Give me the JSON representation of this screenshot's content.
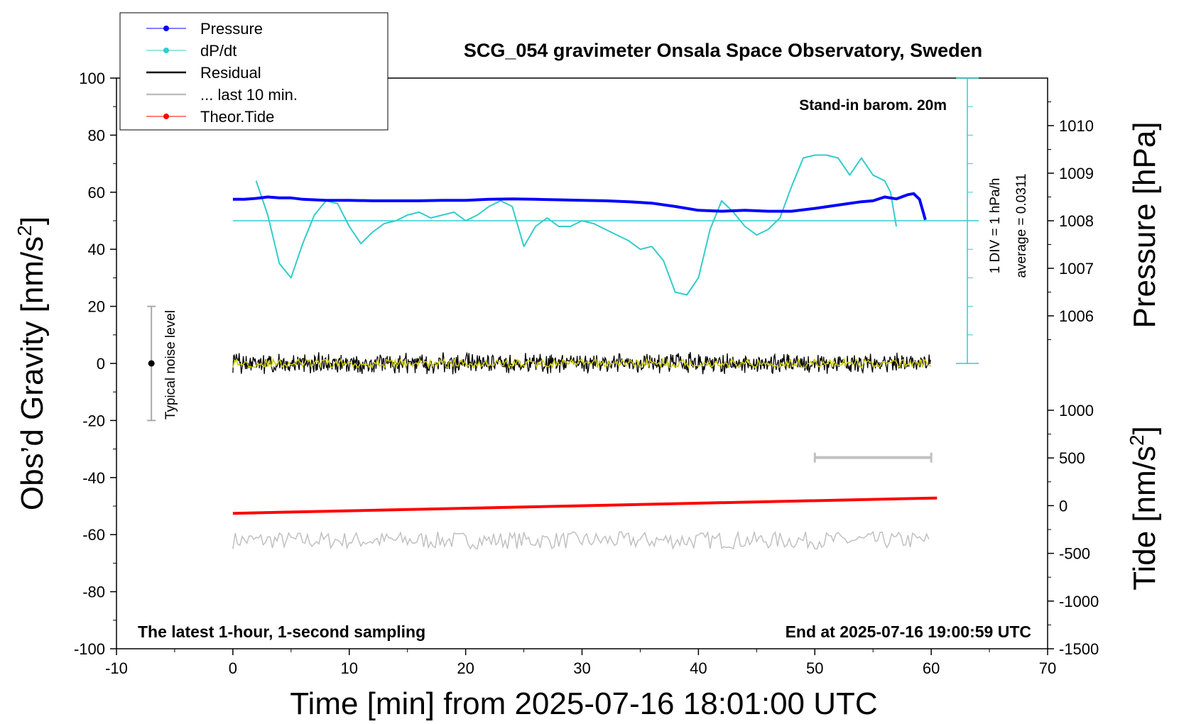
{
  "chart_data": {
    "type": "line",
    "title": "SCG_054 gravimeter Onsala Space Observatory, Sweden",
    "xlabel": "Time [min] from 2025-07-16 18:01:00 UTC",
    "ylabel_left": "Obs’d Gravity [nm/s",
    "ylabel_left_sup": "2",
    "ylabel_left_close": "]",
    "ylabel_right_pressure": "Pressure [hPa]",
    "ylabel_right_tide": "Tide [nm/s",
    "ylabel_right_tide_sup": "2",
    "ylabel_right_tide_close": "]",
    "xlim": [
      -10,
      70
    ],
    "ylim_left": [
      -100,
      100
    ],
    "pressure_ylim": [
      1005,
      1011
    ],
    "tide_ylim": [
      -1500,
      1000
    ],
    "x_ticks": [
      "-10",
      "0",
      "10",
      "20",
      "30",
      "40",
      "50",
      "60",
      "70"
    ],
    "y_ticks_left": [
      "100",
      "80",
      "60",
      "40",
      "20",
      "0",
      "-20",
      "-40",
      "-60",
      "-80",
      "-100"
    ],
    "pressure_ticks": [
      "1010",
      "1009",
      "1008",
      "1007",
      "1006"
    ],
    "tide_ticks": [
      "1000",
      "500",
      "0",
      "-500",
      "-1000",
      "-1500"
    ],
    "legend": {
      "position": "top-left",
      "entries": [
        {
          "label": "Pressure",
          "color": "#0000ff",
          "marker": true
        },
        {
          "label": "dP/dt",
          "color": "#33cccc",
          "marker": true
        },
        {
          "label": "Residual",
          "color": "#000000",
          "marker": false
        },
        {
          "label": "... last 10 min.",
          "color": "#c0c0c0",
          "marker": false
        },
        {
          "label": "Theor.Tide",
          "color": "#ff0000",
          "marker": true
        }
      ]
    },
    "annotations": {
      "barometer": "Stand-in barom. 20m",
      "dpdt_scale": "1 DIV = 1 hPa/h",
      "dpdt_average": "average = 0.0311",
      "bottom_left": "The latest 1-hour, 1-second sampling",
      "bottom_right": "End at 2025-07-16 19:00:59 UTC",
      "noise_label": "Typical noise level"
    },
    "noise_level": {
      "x": -7,
      "center": 0,
      "range": [
        -20,
        20
      ]
    },
    "last10_bar": {
      "x": [
        50,
        60
      ],
      "value": -33
    },
    "series": [
      {
        "name": "Pressure",
        "axis": "pressure",
        "color": "#0000ff",
        "x": [
          0,
          1,
          2,
          3,
          4,
          5,
          6,
          8,
          10,
          12,
          14,
          16,
          18,
          20,
          22,
          24,
          26,
          28,
          30,
          32,
          34,
          36,
          38,
          40,
          42,
          44,
          46,
          48,
          50,
          52,
          54,
          55,
          56,
          57,
          58,
          58.5,
          59,
          59.5
        ],
        "y": [
          1008.45,
          1008.45,
          1008.47,
          1008.5,
          1008.48,
          1008.48,
          1008.45,
          1008.43,
          1008.43,
          1008.42,
          1008.42,
          1008.42,
          1008.43,
          1008.43,
          1008.45,
          1008.46,
          1008.45,
          1008.44,
          1008.43,
          1008.42,
          1008.4,
          1008.37,
          1008.3,
          1008.22,
          1008.2,
          1008.22,
          1008.2,
          1008.2,
          1008.26,
          1008.33,
          1008.4,
          1008.42,
          1008.5,
          1008.46,
          1008.55,
          1008.57,
          1008.45,
          1008.02
        ]
      },
      {
        "name": "dP/dt",
        "axis": "left",
        "color": "#33cccc",
        "x": [
          2,
          3,
          4,
          5,
          6,
          7,
          8,
          9,
          10,
          11,
          12,
          13,
          14,
          15,
          16,
          17,
          18,
          19,
          20,
          21,
          22,
          23,
          24,
          25,
          26,
          27,
          28,
          29,
          30,
          31,
          32,
          33,
          34,
          35,
          36,
          37,
          38,
          39,
          40,
          41,
          42,
          43,
          44,
          45,
          46,
          47,
          48,
          49,
          50,
          51,
          52,
          53,
          54,
          55,
          56,
          56.5,
          57
        ],
        "y": [
          64,
          52,
          35,
          30,
          42,
          52,
          57,
          56,
          48,
          42,
          46,
          49,
          50,
          52,
          53,
          51,
          52,
          53,
          50,
          52,
          55,
          57,
          55,
          41,
          48,
          51,
          48,
          48,
          50,
          49,
          47,
          45,
          43,
          40,
          41,
          36,
          25,
          24,
          30,
          47,
          57,
          53,
          48,
          45,
          47,
          51,
          62,
          72,
          73,
          73,
          72,
          66,
          72,
          66,
          64,
          60,
          48
        ]
      },
      {
        "name": "Residual",
        "axis": "left",
        "color": "#000000",
        "x": [
          0,
          60
        ],
        "y": [
          0,
          0
        ],
        "noise_amplitude": 4
      },
      {
        "name": "Residual (smoothed)",
        "axis": "left",
        "color": "#cccc00",
        "x": [
          0,
          60
        ],
        "y": [
          0,
          0
        ],
        "noise_amplitude": 1.5
      },
      {
        "name": "... last 10 min.",
        "axis": "left",
        "color": "#c0c0c0",
        "x": [
          0,
          60
        ],
        "y": [
          -62,
          -62
        ],
        "noise_amplitude": 3
      },
      {
        "name": "Theor.Tide",
        "axis": "tide",
        "color": "#ff0000",
        "x": [
          0,
          60.5
        ],
        "y": [
          -80,
          80
        ]
      }
    ]
  }
}
